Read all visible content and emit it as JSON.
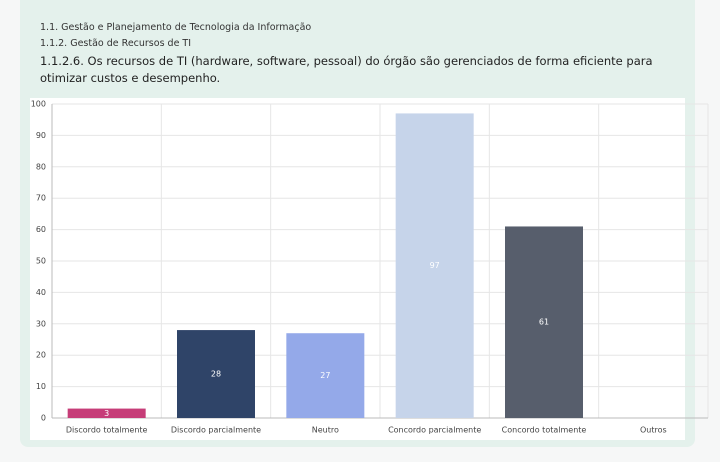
{
  "header": {
    "line1": "1.1. Gestão e Planejamento de Tecnologia da Informação",
    "line2": "1.1.2. Gestão de Recursos de TI",
    "question": "1.1.2.6. Os recursos de TI (hardware, software, pessoal) do órgão são gerenciados de forma eficiente para otimizar custos e desempenho."
  },
  "chart_data": {
    "type": "bar",
    "categories": [
      "Discordo totalmente",
      "Discordo parcialmente",
      "Neutro",
      "Concordo parcialmente",
      "Concordo totalmente",
      "Outros"
    ],
    "values": [
      3,
      28,
      27,
      97,
      61,
      null
    ],
    "colors": [
      "#c63d78",
      "#2f4468",
      "#94a9e9",
      "#c6d4ea",
      "#575e6c",
      "#999999"
    ],
    "ylim": [
      0,
      100
    ],
    "yticks": [
      0,
      10,
      20,
      30,
      40,
      50,
      60,
      70,
      80,
      90,
      100
    ],
    "grid": true
  }
}
